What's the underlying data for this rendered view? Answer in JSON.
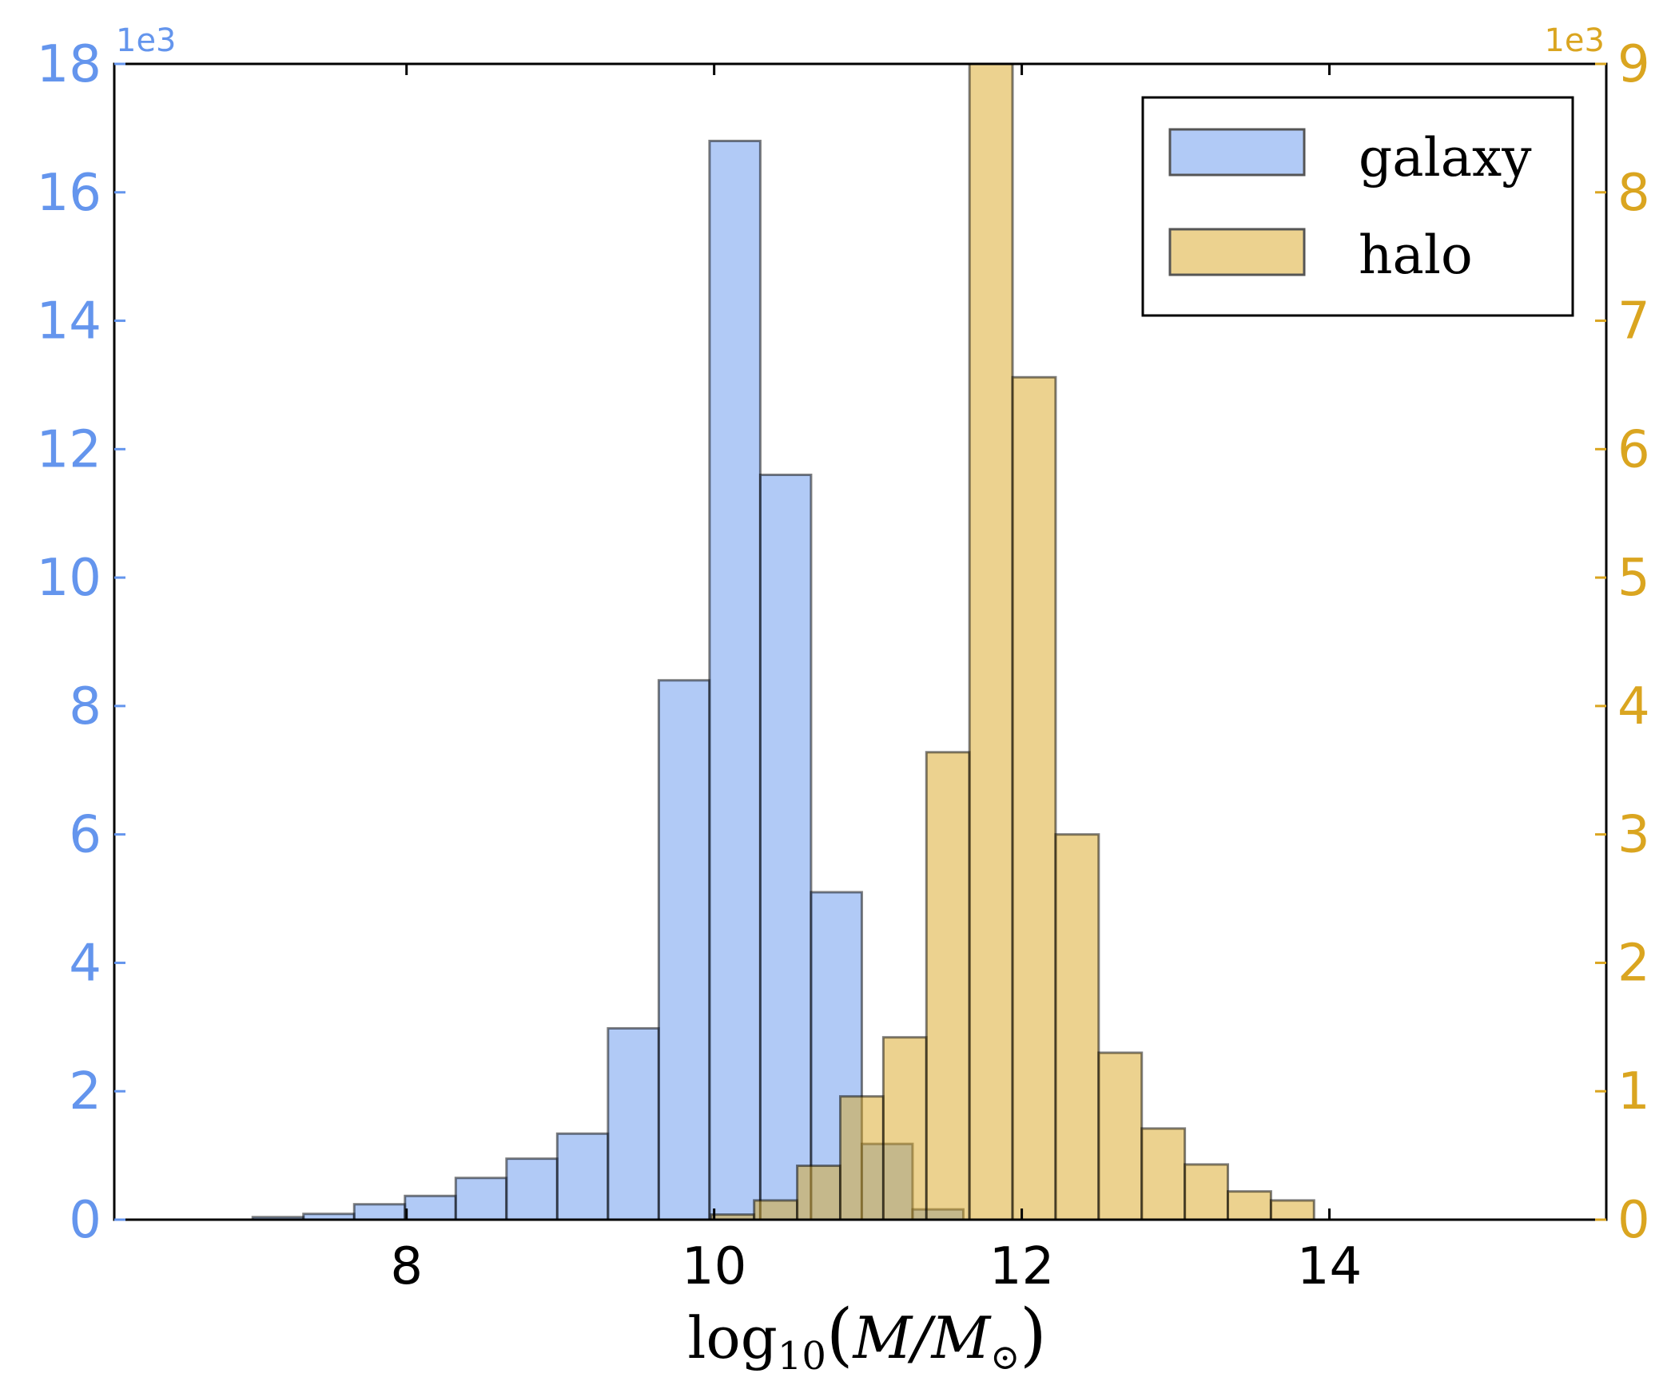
{
  "chart_data": {
    "type": "bar",
    "xlabel_parts": {
      "base": "log",
      "sub": "10",
      "open": "(",
      "M": "M",
      "slash": "/",
      "Msun": "M",
      "sun_sub": "⊙",
      "close": ")"
    },
    "xlim": [
      6.1,
      15.8
    ],
    "xticks": [
      "8",
      "10",
      "12",
      "14"
    ],
    "left_axis": {
      "color": "#6495ed",
      "multiplier": "1e3",
      "ylim": [
        0,
        18
      ],
      "ticks": [
        "0",
        "2",
        "4",
        "6",
        "8",
        "10",
        "12",
        "14",
        "16",
        "18"
      ]
    },
    "right_axis": {
      "color": "#daa520",
      "multiplier": "1e3",
      "ylim": [
        0,
        9
      ],
      "ticks": [
        "0",
        "1",
        "2",
        "3",
        "4",
        "5",
        "6",
        "7",
        "8",
        "9"
      ]
    },
    "legend": {
      "placement": "top-right",
      "entries": [
        "galaxy",
        "halo"
      ]
    },
    "series": [
      {
        "name": "galaxy",
        "axis": "left",
        "color": "#6495ed",
        "bin_edges": [
          7.0,
          7.33,
          7.66,
          7.99,
          8.32,
          8.65,
          8.98,
          9.31,
          9.64,
          9.97,
          10.3,
          10.63,
          10.96,
          11.29,
          11.62
        ],
        "values": [
          0.04,
          0.09,
          0.24,
          0.37,
          0.65,
          0.95,
          1.34,
          2.98,
          8.4,
          16.8,
          11.6,
          5.1,
          1.18,
          0.16
        ]
      },
      {
        "name": "halo",
        "axis": "right",
        "color": "#daa520",
        "bin_edges": [
          9.98,
          10.26,
          10.54,
          10.82,
          11.1,
          11.38,
          11.66,
          11.94,
          12.22,
          12.5,
          12.78,
          13.06,
          13.34,
          13.62,
          13.9
        ],
        "values": [
          0.04,
          0.15,
          0.42,
          0.96,
          1.42,
          3.64,
          9.0,
          6.56,
          3.0,
          1.3,
          0.71,
          0.43,
          0.22,
          0.15
        ]
      }
    ]
  }
}
